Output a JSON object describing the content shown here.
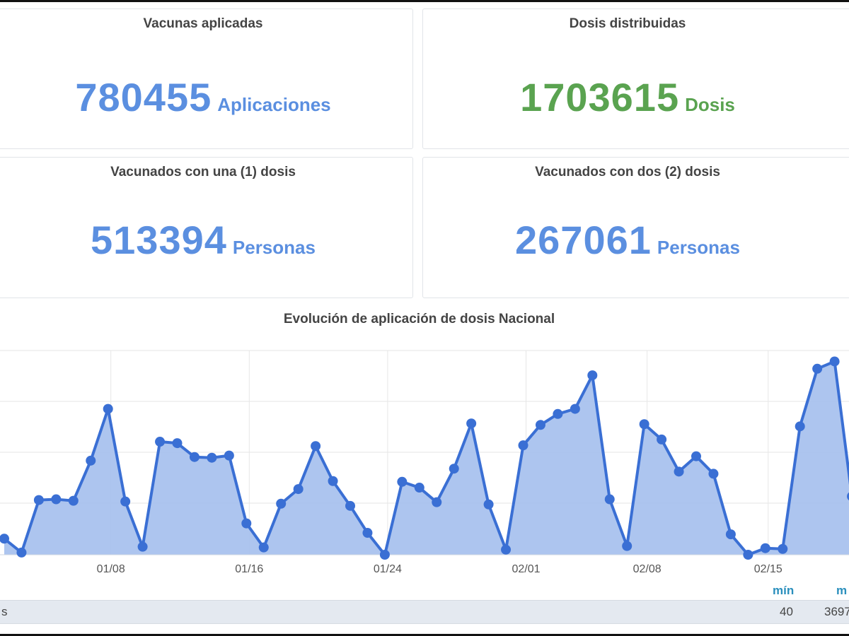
{
  "cards": {
    "applied": {
      "title": "Vacunas aplicadas",
      "value": "780455",
      "unit": "Aplicaciones",
      "color": "#5b8fe0"
    },
    "distributed": {
      "title": "Dosis distribuidas",
      "value": "1703615",
      "unit": "Dosis",
      "color": "#5aa350"
    },
    "one_dose": {
      "title": "Vacunados con una (1) dosis",
      "value": "513394",
      "unit": "Personas",
      "color": "#5b8fe0"
    },
    "two_doses": {
      "title": "Vacunados con dos (2) dosis",
      "value": "267061",
      "unit": "Personas",
      "color": "#5b8fe0"
    }
  },
  "chart_data": {
    "type": "area",
    "title": "Evolución de aplicación de dosis Nacional",
    "xlabel": "",
    "ylabel": "",
    "grid": true,
    "tick_labels": [
      "01/08",
      "01/16",
      "01/24",
      "02/01",
      "02/08",
      "02/15"
    ],
    "series": [
      {
        "color": "#3a6fd4",
        "fill": "#a9c2ee",
        "values": [
          2.2,
          0.3,
          7.5,
          7.6,
          7.4,
          12.9,
          20.0,
          7.3,
          1.1,
          15.5,
          15.3,
          13.4,
          13.3,
          13.6,
          4.3,
          1.0,
          7.0,
          9.0,
          14.9,
          10.1,
          6.7,
          3.0,
          0.0,
          10.0,
          9.2,
          7.2,
          11.8,
          18.0,
          6.9,
          0.7,
          15.0,
          17.8,
          19.3,
          20.0,
          24.6,
          7.6,
          1.2,
          17.9,
          15.8,
          11.4,
          13.5,
          11.1,
          2.8,
          0.0,
          0.9,
          0.8,
          17.6,
          25.5,
          26.5,
          8.0
        ]
      }
    ]
  },
  "stats": {
    "min_label": "mín",
    "max_label": "m",
    "row_label_fragment": "s",
    "min_value": "40",
    "max_value_fragment": "3697"
  }
}
